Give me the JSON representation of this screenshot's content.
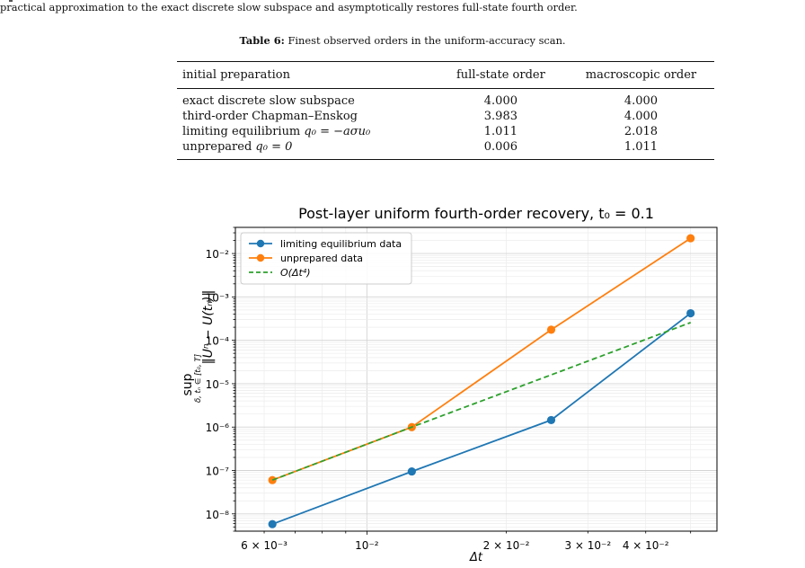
{
  "header_text": "practical approximation to the exact discrete slow subspace and asymptotically restores full-state fourth order.",
  "table": {
    "caption_label": "Table 6:",
    "caption_text": "Finest observed orders in the uniform-accuracy scan.",
    "columns": [
      "initial preparation",
      "full-state order",
      "macroscopic order"
    ],
    "rows": [
      {
        "name_pre": "exact discrete slow subspace",
        "name_math": "",
        "full": "4.000",
        "macro": "4.000"
      },
      {
        "name_pre": "third-order Chapman–Enskog",
        "name_math": "",
        "full": "3.983",
        "macro": "4.000"
      },
      {
        "name_pre": "limiting equilibrium ",
        "name_math": "q₀ = −aσu₀",
        "full": "1.011",
        "macro": "2.018"
      },
      {
        "name_pre": "unprepared ",
        "name_math": "q₀ = 0",
        "full": "0.006",
        "macro": "1.011"
      }
    ]
  },
  "chart_data": {
    "type": "line",
    "title": "Post-layer uniform fourth-order recovery, t₀ = 0.1",
    "xlabel": "Δt",
    "ylabel": "sup ‖Uⁿ − U(tₙ)‖  (δ, tₙ ∈ [t₀, T])",
    "xscale": "log",
    "yscale": "log",
    "xlim": [
      0.0052,
      0.057
    ],
    "ylim": [
      4e-09,
      0.04
    ],
    "grid": true,
    "legend_position": "top-left",
    "x": [
      0.00625,
      0.0125,
      0.025,
      0.05
    ],
    "series": [
      {
        "name": "limiting equilibrium data",
        "values": [
          5.8e-09,
          9.5e-08,
          1.45e-06,
          0.00042
        ],
        "color": "#1f77b4",
        "style": "solid-markers"
      },
      {
        "name": "unprepared data",
        "values": [
          6e-08,
          1e-06,
          0.000175,
          0.0225
        ],
        "color": "#ff7f0e",
        "style": "solid-markers"
      },
      {
        "name": "O(Δt⁴)",
        "values": [
          6e-08,
          1e-06,
          1.6e-05,
          0.000256
        ],
        "color": "#2ca02c",
        "style": "dashed"
      }
    ],
    "x_ticks": [
      {
        "value": 0.006,
        "label": "6 × 10⁻³"
      },
      {
        "value": 0.01,
        "label": "10⁻²"
      },
      {
        "value": 0.02,
        "label": "2 × 10⁻²"
      },
      {
        "value": 0.03,
        "label": "3 × 10⁻²"
      },
      {
        "value": 0.04,
        "label": "4 × 10⁻²"
      }
    ],
    "y_ticks": [
      {
        "value": 1e-08,
        "label": "10⁻⁸"
      },
      {
        "value": 1e-07,
        "label": "10⁻⁷"
      },
      {
        "value": 1e-06,
        "label": "10⁻⁶"
      },
      {
        "value": 1e-05,
        "label": "10⁻⁵"
      },
      {
        "value": 0.0001,
        "label": "10⁻⁴"
      },
      {
        "value": 0.001,
        "label": "10⁻³"
      },
      {
        "value": 0.01,
        "label": "10⁻²"
      }
    ]
  }
}
